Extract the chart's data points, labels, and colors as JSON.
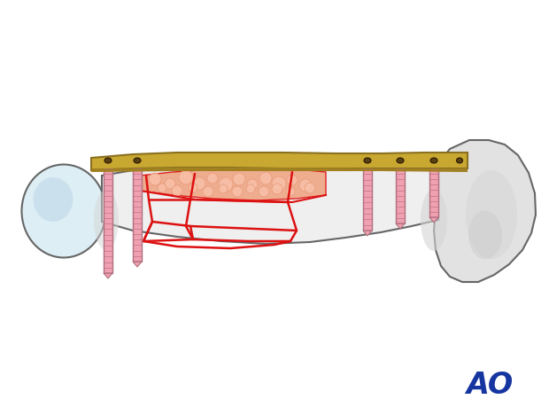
{
  "bg_color": "#ffffff",
  "bone_outline_color": "#666666",
  "bone_fill_color": "#e8e8e8",
  "bone_inner_color": "#efefef",
  "bone_shadow_color": "#d0d0d0",
  "plate_color": "#c8a830",
  "plate_outline": "#8a7020",
  "plate_dark": "#5a4010",
  "screw_color": "#f0a0b0",
  "screw_outline": "#b07080",
  "fracture_line_color": "#dd1111",
  "graft_fill": "#f0a888",
  "graft_bubble": "#f8c0a8",
  "graft_bubble_edge": "#e89878",
  "head_fill": "#ddeef5",
  "head_outline": "#666666",
  "condyle_fill": "#e2e2e2",
  "ao_color": "#1535a0",
  "note_color": "#333333"
}
